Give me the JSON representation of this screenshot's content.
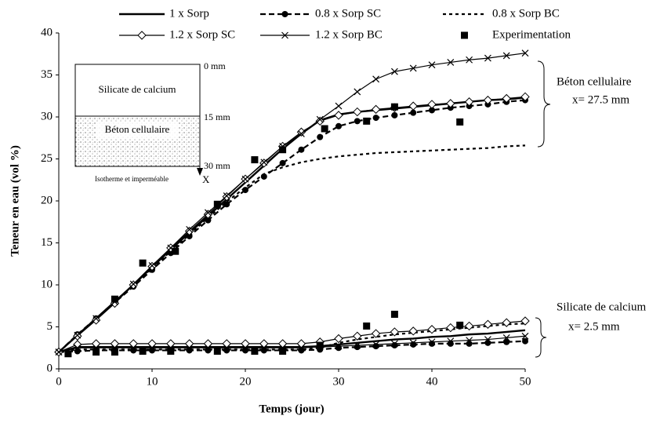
{
  "chart_data": {
    "type": "line",
    "x_label": "Temps (jour)",
    "y_label": "Teneur en eau (vol %)",
    "xlim": [
      0,
      50
    ],
    "xticks": [
      0,
      10,
      20,
      30,
      40,
      50
    ],
    "ylim": [
      0,
      40
    ],
    "yticks": [
      0,
      5,
      10,
      15,
      20,
      25,
      30,
      35,
      40
    ],
    "grid": false,
    "x": [
      0,
      2,
      4,
      6,
      8,
      10,
      12,
      14,
      16,
      18,
      20,
      22,
      24,
      26,
      28,
      30,
      32,
      34,
      36,
      38,
      40,
      42,
      44,
      46,
      48,
      50
    ],
    "series": [
      {
        "name": "1 x Sorp",
        "color": "#000000",
        "line": true,
        "width": 2.4,
        "dash": "",
        "marker": "none",
        "values": [
          [
            2,
            4.0,
            6.0,
            8.0,
            10.0,
            12.1,
            14.2,
            16.2,
            18.2,
            20.2,
            22.2,
            24.2,
            26.2,
            28,
            29.6,
            30.3,
            30.6,
            30.8,
            31,
            31.2,
            31.4,
            31.6,
            31.8,
            32,
            32.1,
            32.3
          ],
          [
            2,
            2.6,
            2.6,
            2.6,
            2.6,
            2.6,
            2.6,
            2.6,
            2.6,
            2.6,
            2.6,
            2.6,
            2.6,
            2.6,
            2.7,
            2.9,
            3.1,
            3.3,
            3.5,
            3.6,
            3.8,
            3.9,
            4.1,
            4.2,
            4.4,
            4.6
          ]
        ]
      },
      {
        "name": "0.8 x Sorp SC",
        "color": "#000000",
        "line": true,
        "width": 2.2,
        "dash": "7,4",
        "marker": "circle",
        "values": [
          [
            2,
            4.1,
            6,
            7.9,
            9.8,
            11.8,
            13.8,
            15.8,
            17.7,
            19.6,
            21.3,
            22.9,
            24.5,
            26.1,
            27.6,
            28.9,
            29.5,
            29.9,
            30.2,
            30.5,
            30.8,
            31.1,
            31.3,
            31.5,
            31.8,
            32
          ],
          [
            2,
            2.1,
            2.2,
            2.2,
            2.2,
            2.2,
            2.2,
            2.2,
            2.2,
            2.2,
            2.2,
            2.2,
            2.2,
            2.2,
            2.3,
            2.5,
            2.6,
            2.7,
            2.8,
            2.9,
            3,
            3,
            3,
            3.1,
            3.2,
            3.3
          ]
        ]
      },
      {
        "name": "0.8 x Sorp BC",
        "color": "#000000",
        "line": true,
        "width": 2.2,
        "dash": "4,4",
        "marker": "none",
        "values": [
          [
            2,
            4,
            6,
            8,
            10,
            12,
            14,
            16,
            18,
            19.9,
            21.6,
            23.2,
            24,
            24.6,
            25,
            25.3,
            25.5,
            25.7,
            25.8,
            25.9,
            26,
            26.1,
            26.2,
            26.3,
            26.5,
            26.6
          ],
          [
            2,
            2.3,
            2.3,
            2.3,
            2.3,
            2.3,
            2.3,
            2.3,
            2.3,
            2.3,
            2.3,
            2.3,
            2.3,
            2.3,
            2.5,
            3.1,
            3.5,
            3.8,
            4.1,
            4.3,
            4.5,
            4.7,
            4.9,
            5.1,
            5.3,
            5.4
          ]
        ]
      },
      {
        "name": "1.2 x Sorp SC",
        "color": "#000000",
        "line": true,
        "width": 1.2,
        "dash": "",
        "marker": "diamond",
        "values": [
          [
            2,
            3.9,
            5.8,
            7.8,
            10,
            12.2,
            14.4,
            16.4,
            18.4,
            20.5,
            22.6,
            24.5,
            26.5,
            28.2,
            29.5,
            30.2,
            30.6,
            30.9,
            31.1,
            31.3,
            31.5,
            31.6,
            31.8,
            32,
            32.2,
            32.4
          ],
          [
            2,
            2.9,
            3,
            3,
            3,
            3,
            3,
            3,
            3,
            3,
            3,
            3,
            3,
            3,
            3.2,
            3.6,
            3.9,
            4.2,
            4.4,
            4.5,
            4.7,
            4.9,
            5.1,
            5.3,
            5.5,
            5.7
          ]
        ]
      },
      {
        "name": "1.2 x Sorp BC",
        "color": "#000000",
        "line": true,
        "width": 1.2,
        "dash": "",
        "marker": "cross",
        "values": [
          [
            2,
            4,
            6,
            8,
            10.1,
            12.3,
            14.4,
            16.6,
            18.6,
            20.6,
            22.6,
            24.6,
            26.5,
            28,
            29.7,
            31.3,
            33,
            34.5,
            35.4,
            35.8,
            36.2,
            36.5,
            36.8,
            37,
            37.3,
            37.6
          ],
          [
            2,
            2.5,
            2.5,
            2.5,
            2.5,
            2.5,
            2.5,
            2.5,
            2.5,
            2.5,
            2.5,
            2.5,
            2.5,
            2.5,
            2.6,
            2.7,
            2.8,
            2.9,
            3,
            3.1,
            3.2,
            3.3,
            3.4,
            3.5,
            3.7,
            3.9
          ]
        ]
      },
      {
        "name": "Experimentation",
        "color": "#000000",
        "line": false,
        "width": 0,
        "dash": "",
        "marker": "square",
        "x": [
          [
            6,
            9,
            12.5,
            17,
            21,
            24,
            28.5,
            33,
            36,
            43
          ],
          [
            1,
            4,
            6,
            9,
            12,
            17,
            21,
            24,
            28,
            33,
            36,
            43
          ]
        ],
        "values": [
          [
            8.3,
            12.6,
            14,
            19.6,
            24.9,
            26.1,
            28.6,
            29.5,
            31.2,
            29.4
          ],
          [
            1.8,
            2,
            2,
            2.1,
            2.1,
            2.1,
            2.1,
            2.1,
            2.8,
            5.1,
            6.5,
            5.2
          ]
        ]
      }
    ],
    "annotations": [
      {
        "text": "Béton cellulaire",
        "detail": "x= 27.5 mm"
      },
      {
        "text": "Silicate de calcium",
        "detail": "x= 2.5 mm"
      }
    ],
    "inset": {
      "top_layer": "Silicate de calcium",
      "bottom_layer": "Béton cellulaire",
      "depths": [
        "0 mm",
        "15 mm",
        "30 mm"
      ],
      "axis": "X",
      "boundary": "Isotherme et imperméable"
    }
  }
}
